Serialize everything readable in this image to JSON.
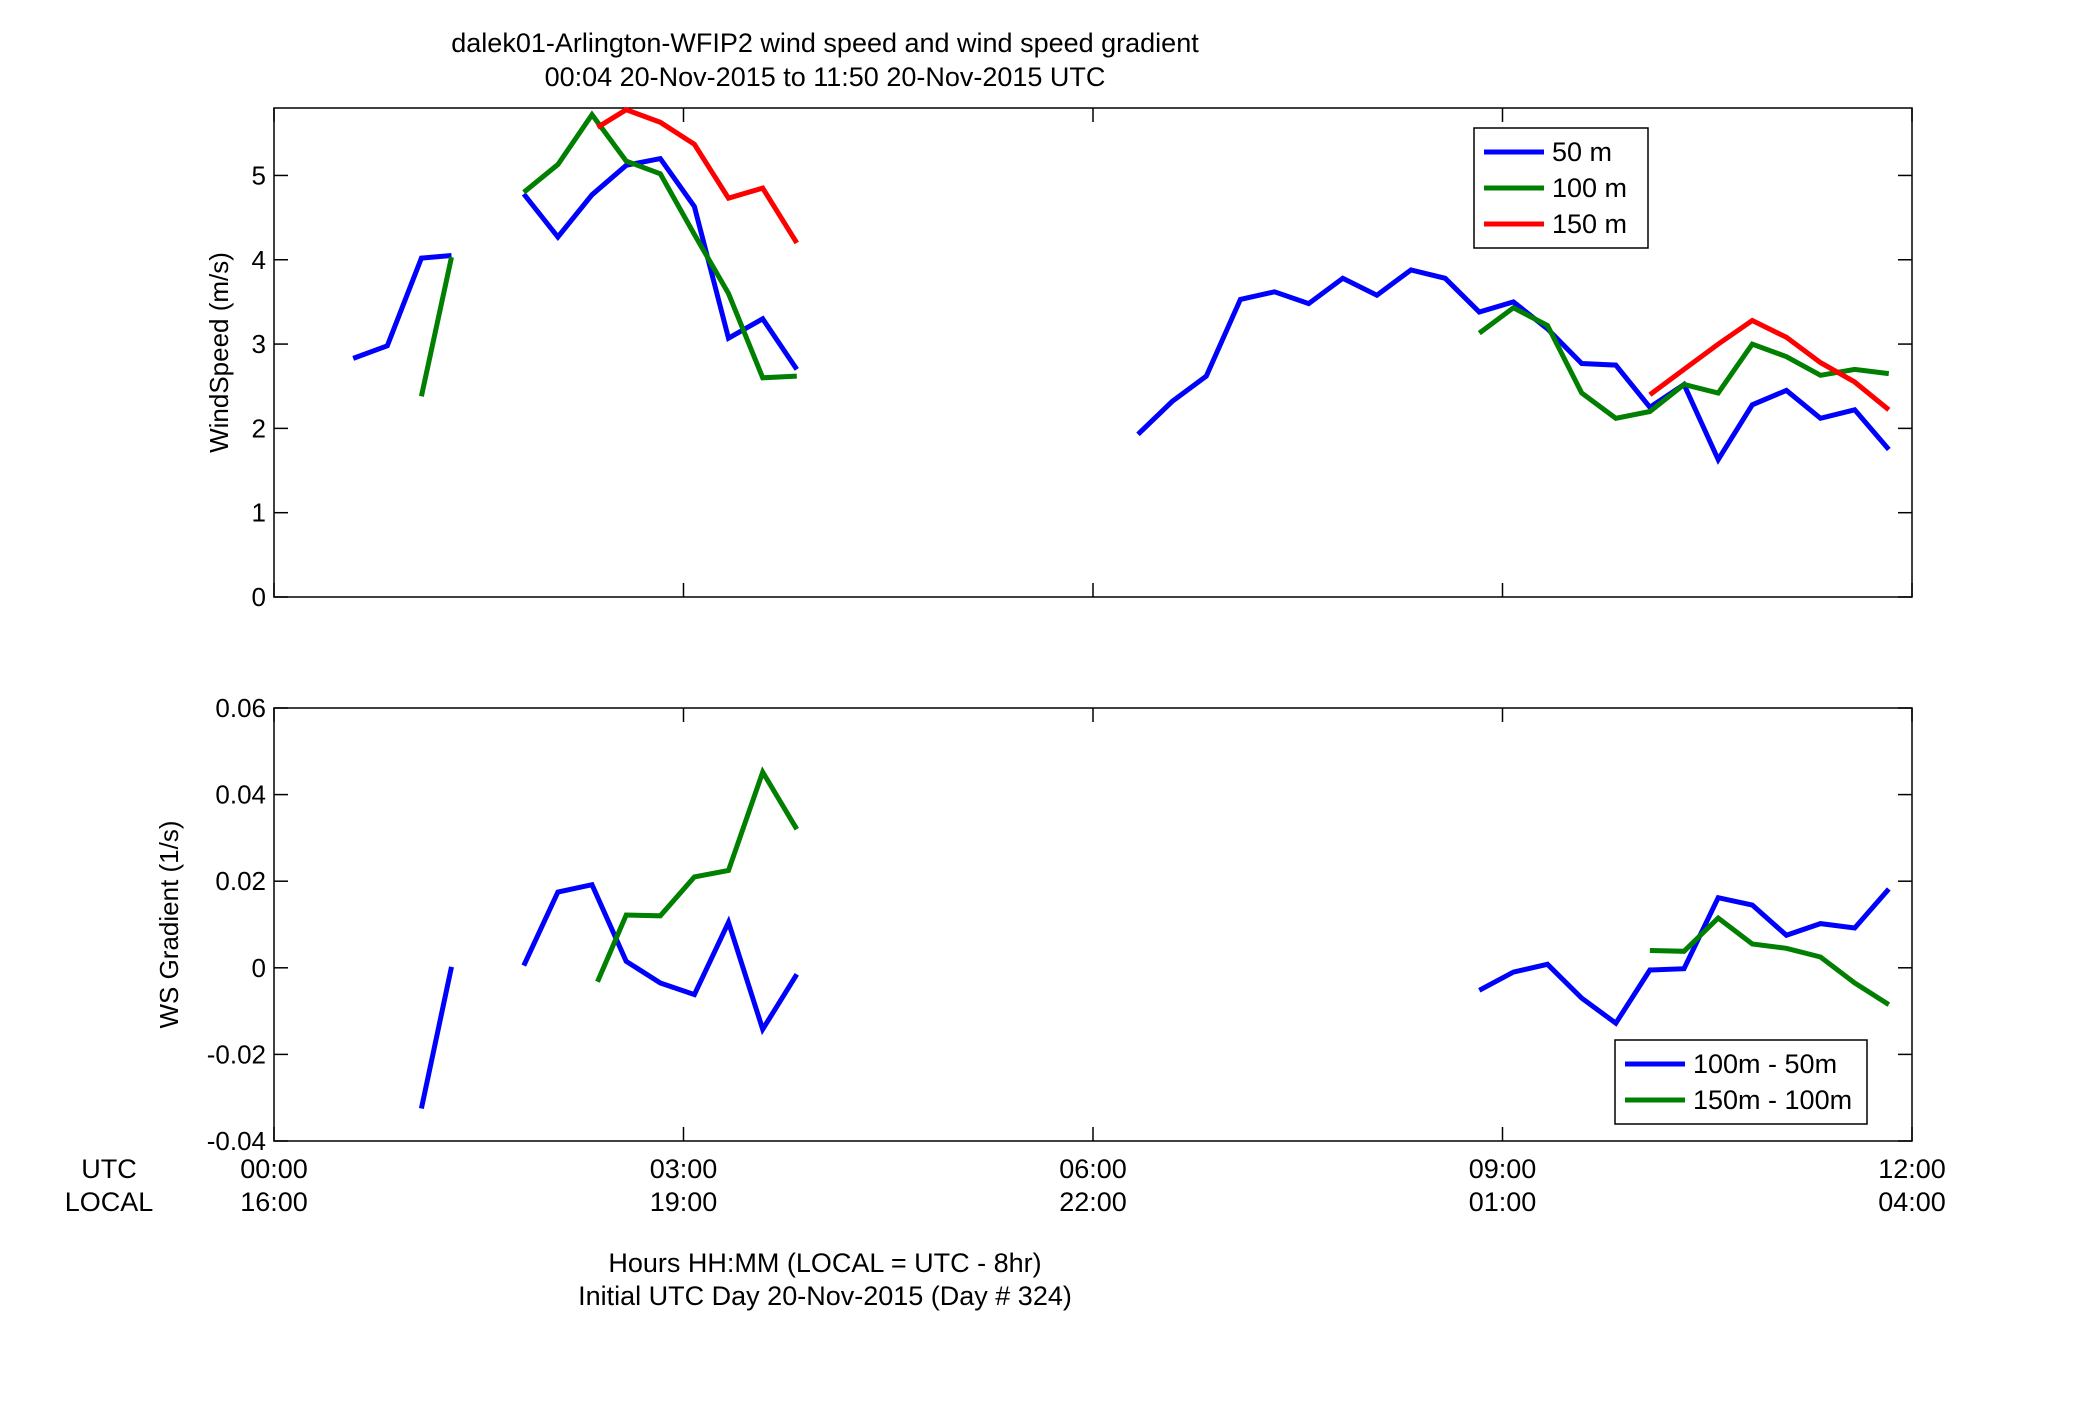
{
  "figure": {
    "title_line1": "dalek01-Arlington-WFIP2  wind speed and wind speed gradient",
    "title_line2": "00:04 20-Nov-2015 to 11:50 20-Nov-2015  UTC",
    "row_label_utc": "UTC",
    "row_label_local": "LOCAL",
    "xlabel_line1": "Hours HH:MM  (LOCAL = UTC - 8hr)",
    "xlabel_line2": "Initial UTC Day 20-Nov-2015 (Day # 324)",
    "x_ticks_utc": [
      "00:00",
      "03:00",
      "06:00",
      "09:00",
      "12:00"
    ],
    "x_ticks_local": [
      "16:00",
      "19:00",
      "22:00",
      "01:00",
      "04:00"
    ]
  },
  "chart_data": [
    {
      "type": "line",
      "ylabel": "WindSpeed (m/s)",
      "xlim": [
        0,
        12
      ],
      "ylim": [
        0,
        5.8
      ],
      "y_ticks": [
        0,
        1,
        2,
        3,
        4,
        5
      ],
      "x_ticks": [
        0,
        3,
        6,
        9,
        12
      ],
      "grid": false,
      "legend_position": "top-right",
      "series": [
        {
          "name": "50 m",
          "color": "#0000ff",
          "segments": [
            [
              [
                0.58,
                2.83
              ],
              [
                0.83,
                2.98
              ],
              [
                1.08,
                4.02
              ],
              [
                1.3,
                4.05
              ]
            ],
            [
              [
                1.83,
                4.78
              ],
              [
                2.08,
                4.27
              ],
              [
                2.33,
                4.77
              ],
              [
                2.58,
                5.12
              ],
              [
                2.83,
                5.2
              ],
              [
                3.08,
                4.63
              ],
              [
                3.33,
                3.07
              ],
              [
                3.58,
                3.3
              ],
              [
                3.83,
                2.7
              ]
            ],
            [
              [
                6.33,
                1.93
              ],
              [
                6.58,
                2.32
              ],
              [
                6.83,
                2.62
              ],
              [
                7.08,
                3.53
              ],
              [
                7.33,
                3.62
              ],
              [
                7.58,
                3.48
              ],
              [
                7.83,
                3.78
              ],
              [
                8.08,
                3.58
              ],
              [
                8.33,
                3.88
              ],
              [
                8.58,
                3.78
              ],
              [
                8.83,
                3.38
              ],
              [
                9.08,
                3.5
              ],
              [
                9.33,
                3.18
              ],
              [
                9.58,
                2.77
              ],
              [
                9.83,
                2.75
              ],
              [
                10.08,
                2.25
              ],
              [
                10.33,
                2.52
              ],
              [
                10.58,
                1.63
              ],
              [
                10.83,
                2.28
              ],
              [
                11.08,
                2.45
              ],
              [
                11.33,
                2.12
              ],
              [
                11.58,
                2.22
              ],
              [
                11.83,
                1.75
              ]
            ]
          ]
        },
        {
          "name": "100 m",
          "color": "#007f00",
          "segments": [
            [
              [
                1.08,
                2.38
              ],
              [
                1.3,
                4.03
              ]
            ],
            [
              [
                1.83,
                4.8
              ],
              [
                2.08,
                5.13
              ],
              [
                2.33,
                5.72
              ],
              [
                2.58,
                5.17
              ],
              [
                2.83,
                5.02
              ],
              [
                3.08,
                4.3
              ],
              [
                3.33,
                3.6
              ],
              [
                3.58,
                2.6
              ],
              [
                3.83,
                2.62
              ]
            ],
            [
              [
                8.83,
                3.13
              ],
              [
                9.08,
                3.43
              ],
              [
                9.33,
                3.22
              ],
              [
                9.58,
                2.42
              ],
              [
                9.83,
                2.12
              ],
              [
                10.08,
                2.2
              ],
              [
                10.33,
                2.52
              ],
              [
                10.58,
                2.42
              ],
              [
                10.83,
                3.0
              ],
              [
                11.08,
                2.85
              ],
              [
                11.33,
                2.63
              ],
              [
                11.58,
                2.7
              ],
              [
                11.83,
                2.65
              ]
            ]
          ]
        },
        {
          "name": "150 m",
          "color": "#ff0000",
          "segments": [
            [
              [
                2.37,
                5.57
              ],
              [
                2.58,
                5.78
              ],
              [
                2.83,
                5.63
              ],
              [
                3.08,
                5.37
              ],
              [
                3.33,
                4.73
              ],
              [
                3.58,
                4.85
              ],
              [
                3.83,
                4.2
              ]
            ],
            [
              [
                10.08,
                2.4
              ],
              [
                10.33,
                2.7
              ],
              [
                10.58,
                3.0
              ],
              [
                10.83,
                3.28
              ],
              [
                11.08,
                3.08
              ],
              [
                11.33,
                2.78
              ],
              [
                11.58,
                2.55
              ],
              [
                11.83,
                2.22
              ]
            ]
          ]
        }
      ]
    },
    {
      "type": "line",
      "ylabel": "WS Gradient (1/s)",
      "xlim": [
        0,
        12
      ],
      "ylim": [
        -0.04,
        0.06
      ],
      "y_ticks": [
        -0.04,
        -0.02,
        0,
        0.02,
        0.04,
        0.06
      ],
      "y_tick_labels": [
        "-0.04",
        "-0.02",
        "0",
        "0.02",
        "0.04",
        "0.06"
      ],
      "x_ticks": [
        0,
        3,
        6,
        9,
        12
      ],
      "grid": false,
      "legend_position": "bottom-right",
      "series": [
        {
          "name": "100m - 50m",
          "color": "#0000ff",
          "segments": [
            [
              [
                1.08,
                -0.0325
              ],
              [
                1.3,
                0.0002
              ]
            ],
            [
              [
                1.83,
                0.0005
              ],
              [
                2.08,
                0.0175
              ],
              [
                2.33,
                0.0192
              ],
              [
                2.58,
                0.0015
              ],
              [
                2.83,
                -0.0035
              ],
              [
                3.08,
                -0.0062
              ],
              [
                3.33,
                0.0105
              ],
              [
                3.58,
                -0.0142
              ],
              [
                3.83,
                -0.0015
              ]
            ],
            [
              [
                8.83,
                -0.0052
              ],
              [
                9.08,
                -0.001
              ],
              [
                9.33,
                0.0008
              ],
              [
                9.58,
                -0.007
              ],
              [
                9.83,
                -0.0128
              ],
              [
                10.08,
                -0.0005
              ],
              [
                10.33,
                -0.0002
              ],
              [
                10.58,
                0.0162
              ],
              [
                10.83,
                0.0145
              ],
              [
                11.08,
                0.0075
              ],
              [
                11.33,
                0.0102
              ],
              [
                11.58,
                0.0092
              ],
              [
                11.83,
                0.0182
              ]
            ]
          ]
        },
        {
          "name": "150m - 100m",
          "color": "#007f00",
          "segments": [
            [
              [
                2.37,
                -0.0032
              ],
              [
                2.58,
                0.0122
              ],
              [
                2.83,
                0.012
              ],
              [
                3.08,
                0.021
              ],
              [
                3.33,
                0.0225
              ],
              [
                3.58,
                0.0452
              ],
              [
                3.83,
                0.032
              ]
            ],
            [
              [
                10.08,
                0.004
              ],
              [
                10.33,
                0.0038
              ],
              [
                10.58,
                0.0115
              ],
              [
                10.83,
                0.0055
              ],
              [
                11.08,
                0.0045
              ],
              [
                11.33,
                0.0025
              ],
              [
                11.58,
                -0.0035
              ],
              [
                11.83,
                -0.0085
              ]
            ]
          ]
        }
      ]
    }
  ]
}
